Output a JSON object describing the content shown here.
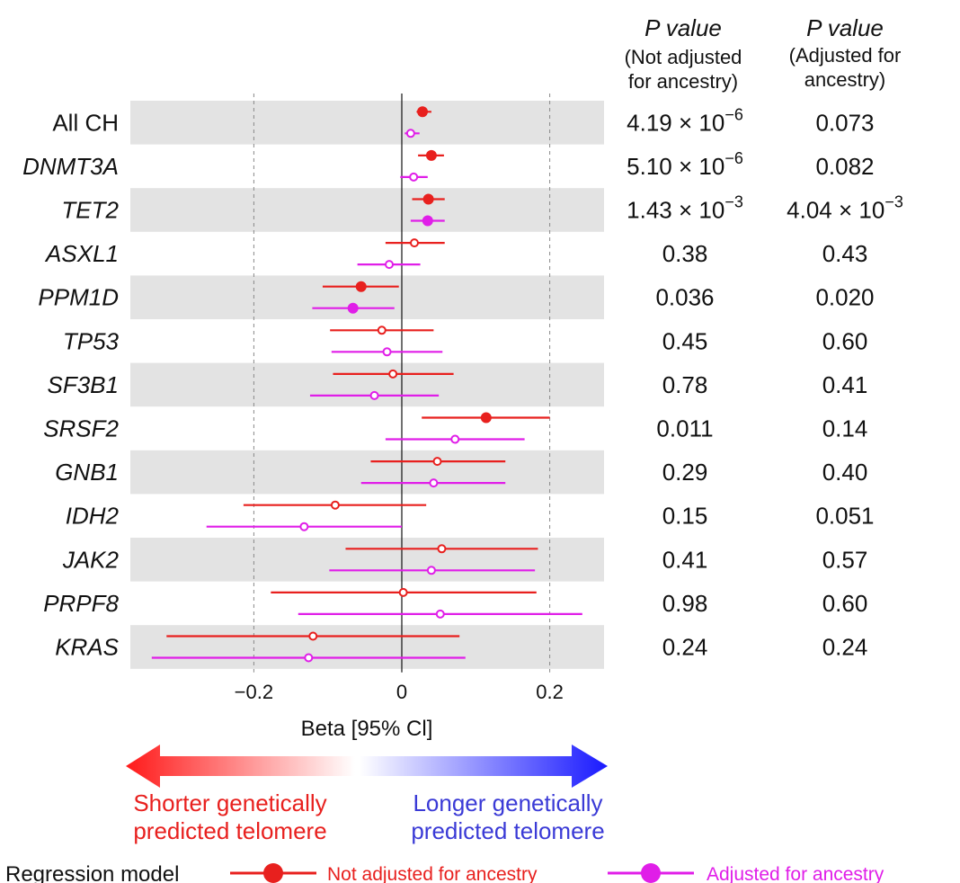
{
  "chart_data": {
    "type": "forest",
    "xlabel": "Beta [95% Cl]",
    "xlim": [
      -0.36,
      0.27
    ],
    "xticks": [
      -0.2,
      0,
      0.2
    ],
    "xtick_labels": [
      "−0.2",
      "0",
      "0.2"
    ],
    "pvalue_headers": {
      "unadjusted": {
        "title": "P value",
        "sub1": "(Not adjusted",
        "sub2": "for ancestry)"
      },
      "adjusted": {
        "title": "P value",
        "sub1": "(Adjusted for",
        "sub2": "ancestry)"
      }
    },
    "series": [
      {
        "name": "Not adjusted for ancestry",
        "color": "#e8201e"
      },
      {
        "name": "Adjusted for ancestry",
        "color": "#e01ee8"
      }
    ],
    "rows": [
      {
        "gene": "All CH",
        "italic": false,
        "unadj": {
          "est": 0.028,
          "lo": 0.02,
          "hi": 0.04,
          "filled": true
        },
        "adj": {
          "est": 0.012,
          "lo": 0.004,
          "hi": 0.024,
          "filled": false
        },
        "p_unadj": {
          "mant": "4.19 × 10",
          "exp": "−6"
        },
        "p_adj": {
          "mant": "0.073",
          "exp": ""
        }
      },
      {
        "gene": "DNMT3A",
        "italic": true,
        "unadj": {
          "est": 0.04,
          "lo": 0.022,
          "hi": 0.057,
          "filled": true
        },
        "adj": {
          "est": 0.016,
          "lo": -0.002,
          "hi": 0.035,
          "filled": false
        },
        "p_unadj": {
          "mant": "5.10 × 10",
          "exp": "−6"
        },
        "p_adj": {
          "mant": "0.082",
          "exp": ""
        }
      },
      {
        "gene": "TET2",
        "italic": true,
        "unadj": {
          "est": 0.036,
          "lo": 0.014,
          "hi": 0.058,
          "filled": true
        },
        "adj": {
          "est": 0.035,
          "lo": 0.012,
          "hi": 0.058,
          "filled": true
        },
        "p_unadj": {
          "mant": "1.43 × 10",
          "exp": "−3"
        },
        "p_adj": {
          "mant": "4.04 × 10",
          "exp": "−3"
        }
      },
      {
        "gene": "ASXL1",
        "italic": true,
        "unadj": {
          "est": 0.017,
          "lo": -0.022,
          "hi": 0.058,
          "filled": false
        },
        "adj": {
          "est": -0.017,
          "lo": -0.06,
          "hi": 0.025,
          "filled": false
        },
        "p_unadj": {
          "mant": "0.38",
          "exp": ""
        },
        "p_adj": {
          "mant": "0.43",
          "exp": ""
        }
      },
      {
        "gene": "PPM1D",
        "italic": true,
        "unadj": {
          "est": -0.055,
          "lo": -0.107,
          "hi": -0.004,
          "filled": true
        },
        "adj": {
          "est": -0.066,
          "lo": -0.121,
          "hi": -0.01,
          "filled": true
        },
        "p_unadj": {
          "mant": "0.036",
          "exp": ""
        },
        "p_adj": {
          "mant": "0.020",
          "exp": ""
        }
      },
      {
        "gene": "TP53",
        "italic": true,
        "unadj": {
          "est": -0.027,
          "lo": -0.097,
          "hi": 0.043,
          "filled": false
        },
        "adj": {
          "est": -0.02,
          "lo": -0.095,
          "hi": 0.055,
          "filled": false
        },
        "p_unadj": {
          "mant": "0.45",
          "exp": ""
        },
        "p_adj": {
          "mant": "0.60",
          "exp": ""
        }
      },
      {
        "gene": "SF3B1",
        "italic": true,
        "unadj": {
          "est": -0.012,
          "lo": -0.093,
          "hi": 0.07,
          "filled": false
        },
        "adj": {
          "est": -0.037,
          "lo": -0.124,
          "hi": 0.05,
          "filled": false
        },
        "p_unadj": {
          "mant": "0.78",
          "exp": ""
        },
        "p_adj": {
          "mant": "0.41",
          "exp": ""
        }
      },
      {
        "gene": "SRSF2",
        "italic": true,
        "unadj": {
          "est": 0.114,
          "lo": 0.027,
          "hi": 0.2,
          "filled": true
        },
        "adj": {
          "est": 0.072,
          "lo": -0.022,
          "hi": 0.166,
          "filled": false
        },
        "p_unadj": {
          "mant": "0.011",
          "exp": ""
        },
        "p_adj": {
          "mant": "0.14",
          "exp": ""
        }
      },
      {
        "gene": "GNB1",
        "italic": true,
        "unadj": {
          "est": 0.048,
          "lo": -0.042,
          "hi": 0.14,
          "filled": false
        },
        "adj": {
          "est": 0.043,
          "lo": -0.055,
          "hi": 0.14,
          "filled": false
        },
        "p_unadj": {
          "mant": "0.29",
          "exp": ""
        },
        "p_adj": {
          "mant": "0.40",
          "exp": ""
        }
      },
      {
        "gene": "IDH2",
        "italic": true,
        "unadj": {
          "est": -0.09,
          "lo": -0.214,
          "hi": 0.033,
          "filled": false
        },
        "adj": {
          "est": -0.132,
          "lo": -0.264,
          "hi": 0,
          "filled": false
        },
        "p_unadj": {
          "mant": "0.15",
          "exp": ""
        },
        "p_adj": {
          "mant": "0.051",
          "exp": ""
        }
      },
      {
        "gene": "JAK2",
        "italic": true,
        "unadj": {
          "est": 0.054,
          "lo": -0.076,
          "hi": 0.184,
          "filled": false
        },
        "adj": {
          "est": 0.04,
          "lo": -0.098,
          "hi": 0.18,
          "filled": false
        },
        "p_unadj": {
          "mant": "0.41",
          "exp": ""
        },
        "p_adj": {
          "mant": "0.57",
          "exp": ""
        }
      },
      {
        "gene": "PRPF8",
        "italic": true,
        "unadj": {
          "est": 0.002,
          "lo": -0.177,
          "hi": 0.182,
          "filled": false
        },
        "adj": {
          "est": 0.052,
          "lo": -0.14,
          "hi": 0.244,
          "filled": false
        },
        "p_unadj": {
          "mant": "0.98",
          "exp": ""
        },
        "p_adj": {
          "mant": "0.60",
          "exp": ""
        }
      },
      {
        "gene": "KRAS",
        "italic": true,
        "unadj": {
          "est": -0.12,
          "lo": -0.318,
          "hi": 0.078,
          "filled": false
        },
        "adj": {
          "est": -0.126,
          "lo": -0.338,
          "hi": 0.086,
          "filled": false
        },
        "p_unadj": {
          "mant": "0.24",
          "exp": ""
        },
        "p_adj": {
          "mant": "0.24",
          "exp": ""
        }
      }
    ],
    "direction": {
      "left_line1": "Shorter genetically",
      "left_line2": "predicted telomere",
      "right_line1": "Longer genetically",
      "right_line2": "predicted telomere",
      "left_color": "#ff2020",
      "right_color": "#1a1aff"
    },
    "legend": {
      "title": "Regression model"
    }
  }
}
